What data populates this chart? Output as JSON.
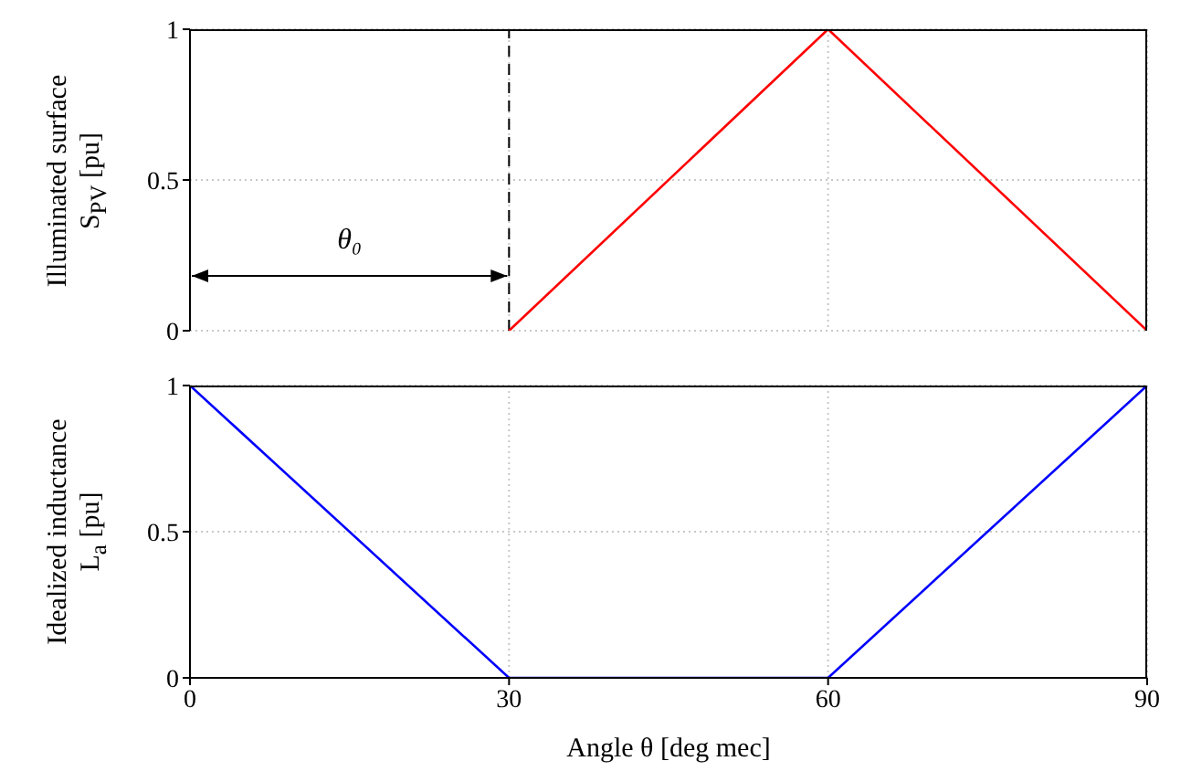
{
  "chart_data": [
    {
      "type": "line",
      "ylabel": "Illuminated surface\nS$_{PV}$ [pu]",
      "xlim": [
        0,
        90
      ],
      "xticks": [
        0,
        30,
        60,
        90
      ],
      "ylim": [
        0,
        1
      ],
      "yticks": [
        0,
        0.5,
        1
      ],
      "grid": true,
      "tick_labels": "y",
      "marker": "none",
      "line_style": "solid",
      "series": [
        {
          "color": "#ff0000",
          "x": [
            30,
            60,
            90
          ],
          "values": [
            0,
            1,
            0
          ]
        }
      ],
      "ref_lines": [
        {
          "axis": "x",
          "value": 30,
          "color": "#000000",
          "line_style": "dashed"
        }
      ],
      "annotations": [
        "θ₀"
      ]
    },
    {
      "type": "line",
      "ylabel": "Idealized inductance\nL$_{a}$ [pu]",
      "xlabel": "Angle θ [deg mec]",
      "xlim": [
        0,
        90
      ],
      "xticks": [
        0,
        30,
        60,
        90
      ],
      "ylim": [
        0,
        1
      ],
      "yticks": [
        0,
        0.5,
        1
      ],
      "grid": true,
      "marker": "none",
      "line_style": "solid",
      "series": [
        {
          "color": "#0000ff",
          "x": [
            0,
            30,
            60,
            90
          ],
          "values": [
            1,
            0,
            0,
            1
          ]
        }
      ]
    }
  ]
}
